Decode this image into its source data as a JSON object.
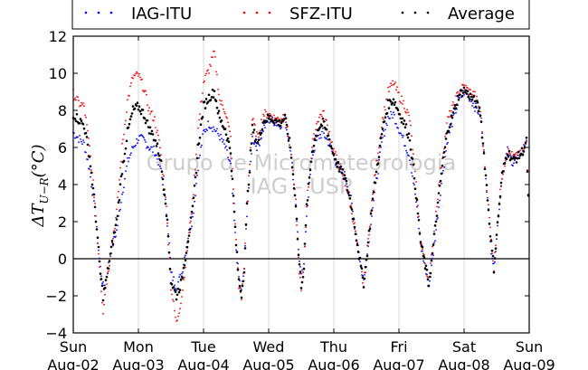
{
  "chart_data": {
    "type": "scatter",
    "ylabel": "ΔT_{U−R}(°C)",
    "ylim": [
      -4,
      12
    ],
    "yticks": [
      -4,
      -2,
      0,
      2,
      4,
      6,
      8,
      10,
      12
    ],
    "xlim": [
      "2015-08-02 00:00",
      "2015-08-09 00:00"
    ],
    "xticks": [
      {
        "day": "Sun",
        "date": "Aug-02"
      },
      {
        "day": "Mon",
        "date": "Aug-03"
      },
      {
        "day": "Tue",
        "date": "Aug-04"
      },
      {
        "day": "Wed",
        "date": "Aug-05"
      },
      {
        "day": "Thu",
        "date": "Aug-06"
      },
      {
        "day": "Fri",
        "date": "Aug-07"
      },
      {
        "day": "Sat",
        "date": "Aug-08"
      },
      {
        "day": "Sun",
        "date": "Aug-09"
      }
    ],
    "grid": true,
    "zero_line": true,
    "legend_position": "top",
    "watermark": [
      "Grupo de Micrometeorologia",
      "IAG - USP"
    ],
    "x_unit": "hours from Aug-02 00:00",
    "series": [
      {
        "name": "IAG-ITU",
        "color": "#0000ff",
        "points": [
          [
            0,
            6.8
          ],
          [
            2,
            6.5
          ],
          [
            4,
            6.2
          ],
          [
            6,
            4.8
          ],
          [
            8,
            2.5
          ],
          [
            10,
            -0.5
          ],
          [
            11,
            -1.5
          ],
          [
            12,
            -1.2
          ],
          [
            14,
            0.5
          ],
          [
            16,
            1.5
          ],
          [
            18,
            3.5
          ],
          [
            20,
            5.2
          ],
          [
            22,
            6.0
          ],
          [
            24,
            6.5
          ],
          [
            26,
            6.4
          ],
          [
            28,
            6.0
          ],
          [
            30,
            5.8
          ],
          [
            32,
            5.0
          ],
          [
            34,
            3.0
          ],
          [
            35,
            1.5
          ],
          [
            36,
            -0.8
          ],
          [
            38,
            -1.5
          ],
          [
            40,
            -0.8
          ],
          [
            42,
            1.0
          ],
          [
            44,
            2.2
          ],
          [
            46,
            5.0
          ],
          [
            48,
            6.8
          ],
          [
            50,
            7.3
          ],
          [
            52,
            7.0
          ],
          [
            54,
            6.6
          ],
          [
            56,
            6.0
          ],
          [
            58,
            5.0
          ],
          [
            60,
            0.5
          ],
          [
            61,
            -1.0
          ],
          [
            62,
            -1.8
          ],
          [
            63,
            -0.5
          ],
          [
            64,
            2.5
          ],
          [
            66,
            6.5
          ],
          [
            68,
            6.0
          ],
          [
            70,
            7.0
          ],
          [
            72,
            7.5
          ],
          [
            74,
            7.4
          ],
          [
            76,
            7.2
          ],
          [
            78,
            7.5
          ],
          [
            80,
            6.0
          ],
          [
            82,
            3.0
          ],
          [
            83,
            0.5
          ],
          [
            84,
            -1.0
          ],
          [
            85,
            -0.5
          ],
          [
            86,
            2.5
          ],
          [
            88,
            5.5
          ],
          [
            90,
            6.5
          ],
          [
            92,
            6.8
          ],
          [
            94,
            6.3
          ],
          [
            96,
            5.5
          ],
          [
            98,
            4.8
          ],
          [
            100,
            4.5
          ],
          [
            102,
            3.5
          ],
          [
            104,
            1.5
          ],
          [
            106,
            -0.5
          ],
          [
            107,
            -1.2
          ],
          [
            108,
            -0.2
          ],
          [
            110,
            2.5
          ],
          [
            112,
            4.5
          ],
          [
            114,
            6.5
          ],
          [
            116,
            7.6
          ],
          [
            118,
            7.8
          ],
          [
            120,
            7.0
          ],
          [
            122,
            6.3
          ],
          [
            124,
            5.5
          ],
          [
            126,
            3.5
          ],
          [
            128,
            0.8
          ],
          [
            130,
            -0.8
          ],
          [
            131,
            -1.5
          ],
          [
            132,
            -0.5
          ],
          [
            134,
            2.0
          ],
          [
            136,
            4.5
          ],
          [
            138,
            6.5
          ],
          [
            140,
            7.5
          ],
          [
            142,
            8.5
          ],
          [
            144,
            9.0
          ],
          [
            146,
            8.7
          ],
          [
            148,
            8.2
          ],
          [
            150,
            7.8
          ],
          [
            152,
            4.5
          ],
          [
            154,
            0.5
          ],
          [
            155,
            -0.5
          ],
          [
            156,
            1.2
          ],
          [
            158,
            4.5
          ],
          [
            160,
            5.8
          ],
          [
            162,
            5.2
          ],
          [
            164,
            5.5
          ],
          [
            166,
            6.0
          ],
          [
            167,
            6.5
          ],
          [
            168,
            1.5
          ]
        ]
      },
      {
        "name": "SFZ-ITU",
        "color": "#ff0000",
        "points": [
          [
            0,
            8.9
          ],
          [
            2,
            8.4
          ],
          [
            4,
            8.2
          ],
          [
            6,
            6.0
          ],
          [
            8,
            3.0
          ],
          [
            10,
            -1.0
          ],
          [
            11,
            -2.8
          ],
          [
            12,
            -1.5
          ],
          [
            14,
            0.5
          ],
          [
            16,
            2.5
          ],
          [
            18,
            6.0
          ],
          [
            20,
            8.5
          ],
          [
            22,
            9.8
          ],
          [
            24,
            9.9
          ],
          [
            26,
            9.2
          ],
          [
            28,
            8.0
          ],
          [
            30,
            7.5
          ],
          [
            32,
            6.0
          ],
          [
            34,
            3.5
          ],
          [
            35,
            1.0
          ],
          [
            36,
            -1.5
          ],
          [
            38,
            -3.5
          ],
          [
            40,
            -2.0
          ],
          [
            42,
            0.5
          ],
          [
            44,
            3.0
          ],
          [
            46,
            7.0
          ],
          [
            48,
            9.5
          ],
          [
            50,
            10.2
          ],
          [
            52,
            11.1
          ],
          [
            54,
            8.5
          ],
          [
            56,
            8.0
          ],
          [
            58,
            6.5
          ],
          [
            60,
            1.0
          ],
          [
            61,
            -1.5
          ],
          [
            62,
            -2.0
          ],
          [
            63,
            -0.5
          ],
          [
            64,
            3.0
          ],
          [
            66,
            7.5
          ],
          [
            68,
            6.5
          ],
          [
            70,
            7.8
          ],
          [
            72,
            7.8
          ],
          [
            74,
            7.6
          ],
          [
            76,
            7.5
          ],
          [
            78,
            7.8
          ],
          [
            80,
            6.0
          ],
          [
            82,
            3.0
          ],
          [
            83,
            0.0
          ],
          [
            84,
            -1.8
          ],
          [
            85,
            -0.5
          ],
          [
            86,
            3.0
          ],
          [
            88,
            6.0
          ],
          [
            90,
            7.5
          ],
          [
            92,
            7.9
          ],
          [
            94,
            7.0
          ],
          [
            96,
            5.8
          ],
          [
            98,
            5.0
          ],
          [
            100,
            4.3
          ],
          [
            102,
            3.0
          ],
          [
            104,
            1.5
          ],
          [
            106,
            -0.5
          ],
          [
            107,
            -1.5
          ],
          [
            108,
            0.0
          ],
          [
            110,
            3.0
          ],
          [
            112,
            5.5
          ],
          [
            114,
            7.5
          ],
          [
            116,
            9.0
          ],
          [
            118,
            9.5
          ],
          [
            120,
            8.8
          ],
          [
            122,
            8.3
          ],
          [
            124,
            7.5
          ],
          [
            126,
            4.5
          ],
          [
            128,
            1.0
          ],
          [
            130,
            -0.5
          ],
          [
            131,
            -1.2
          ],
          [
            132,
            0.0
          ],
          [
            134,
            3.0
          ],
          [
            136,
            5.5
          ],
          [
            138,
            7.5
          ],
          [
            140,
            8.2
          ],
          [
            142,
            9.0
          ],
          [
            144,
            9.3
          ],
          [
            146,
            9.0
          ],
          [
            148,
            8.8
          ],
          [
            150,
            8.0
          ],
          [
            152,
            4.5
          ],
          [
            154,
            1.0
          ],
          [
            155,
            -0.5
          ],
          [
            156,
            1.5
          ],
          [
            158,
            4.5
          ],
          [
            160,
            5.8
          ],
          [
            162,
            5.5
          ],
          [
            164,
            5.5
          ],
          [
            166,
            5.8
          ],
          [
            167,
            6.2
          ],
          [
            168,
            2.0
          ]
        ]
      },
      {
        "name": "Average",
        "color": "#000000",
        "points": [
          [
            0,
            7.8
          ],
          [
            2,
            7.5
          ],
          [
            4,
            7.2
          ],
          [
            6,
            5.5
          ],
          [
            8,
            2.8
          ],
          [
            10,
            -0.8
          ],
          [
            11,
            -2.0
          ],
          [
            12,
            -1.3
          ],
          [
            14,
            0.5
          ],
          [
            16,
            2.0
          ],
          [
            18,
            4.8
          ],
          [
            20,
            6.8
          ],
          [
            22,
            8.0
          ],
          [
            24,
            8.2
          ],
          [
            26,
            7.8
          ],
          [
            28,
            7.0
          ],
          [
            30,
            6.5
          ],
          [
            32,
            5.5
          ],
          [
            34,
            3.2
          ],
          [
            35,
            1.2
          ],
          [
            36,
            -1.2
          ],
          [
            38,
            -2.0
          ],
          [
            40,
            -1.2
          ],
          [
            42,
            0.8
          ],
          [
            44,
            2.6
          ],
          [
            46,
            6.0
          ],
          [
            48,
            8.2
          ],
          [
            50,
            8.7
          ],
          [
            52,
            9.0
          ],
          [
            54,
            7.5
          ],
          [
            56,
            7.0
          ],
          [
            58,
            5.8
          ],
          [
            60,
            0.8
          ],
          [
            61,
            -1.2
          ],
          [
            62,
            -1.9
          ],
          [
            63,
            -0.5
          ],
          [
            64,
            2.8
          ],
          [
            66,
            7.0
          ],
          [
            68,
            6.2
          ],
          [
            70,
            7.4
          ],
          [
            72,
            7.6
          ],
          [
            74,
            7.5
          ],
          [
            76,
            7.3
          ],
          [
            78,
            7.6
          ],
          [
            80,
            6.0
          ],
          [
            82,
            3.0
          ],
          [
            83,
            0.2
          ],
          [
            84,
            -1.4
          ],
          [
            85,
            -0.5
          ],
          [
            86,
            2.8
          ],
          [
            88,
            5.8
          ],
          [
            90,
            7.0
          ],
          [
            92,
            7.3
          ],
          [
            94,
            6.6
          ],
          [
            96,
            5.6
          ],
          [
            98,
            4.9
          ],
          [
            100,
            4.4
          ],
          [
            102,
            3.2
          ],
          [
            104,
            1.5
          ],
          [
            106,
            -0.5
          ],
          [
            107,
            -1.3
          ],
          [
            108,
            -0.1
          ],
          [
            110,
            2.8
          ],
          [
            112,
            5.0
          ],
          [
            114,
            7.0
          ],
          [
            116,
            8.3
          ],
          [
            118,
            8.6
          ],
          [
            120,
            7.9
          ],
          [
            122,
            7.3
          ],
          [
            124,
            6.5
          ],
          [
            126,
            4.0
          ],
          [
            128,
            0.9
          ],
          [
            130,
            -0.6
          ],
          [
            131,
            -1.3
          ],
          [
            132,
            -0.2
          ],
          [
            134,
            2.5
          ],
          [
            136,
            5.0
          ],
          [
            138,
            7.0
          ],
          [
            140,
            7.8
          ],
          [
            142,
            8.8
          ],
          [
            144,
            9.1
          ],
          [
            146,
            8.8
          ],
          [
            148,
            8.5
          ],
          [
            150,
            7.9
          ],
          [
            152,
            4.5
          ],
          [
            154,
            0.8
          ],
          [
            155,
            -0.5
          ],
          [
            156,
            1.3
          ],
          [
            158,
            4.5
          ],
          [
            160,
            5.8
          ],
          [
            162,
            5.3
          ],
          [
            164,
            5.5
          ],
          [
            166,
            5.9
          ],
          [
            167,
            6.3
          ],
          [
            168,
            1.8
          ]
        ]
      }
    ]
  }
}
